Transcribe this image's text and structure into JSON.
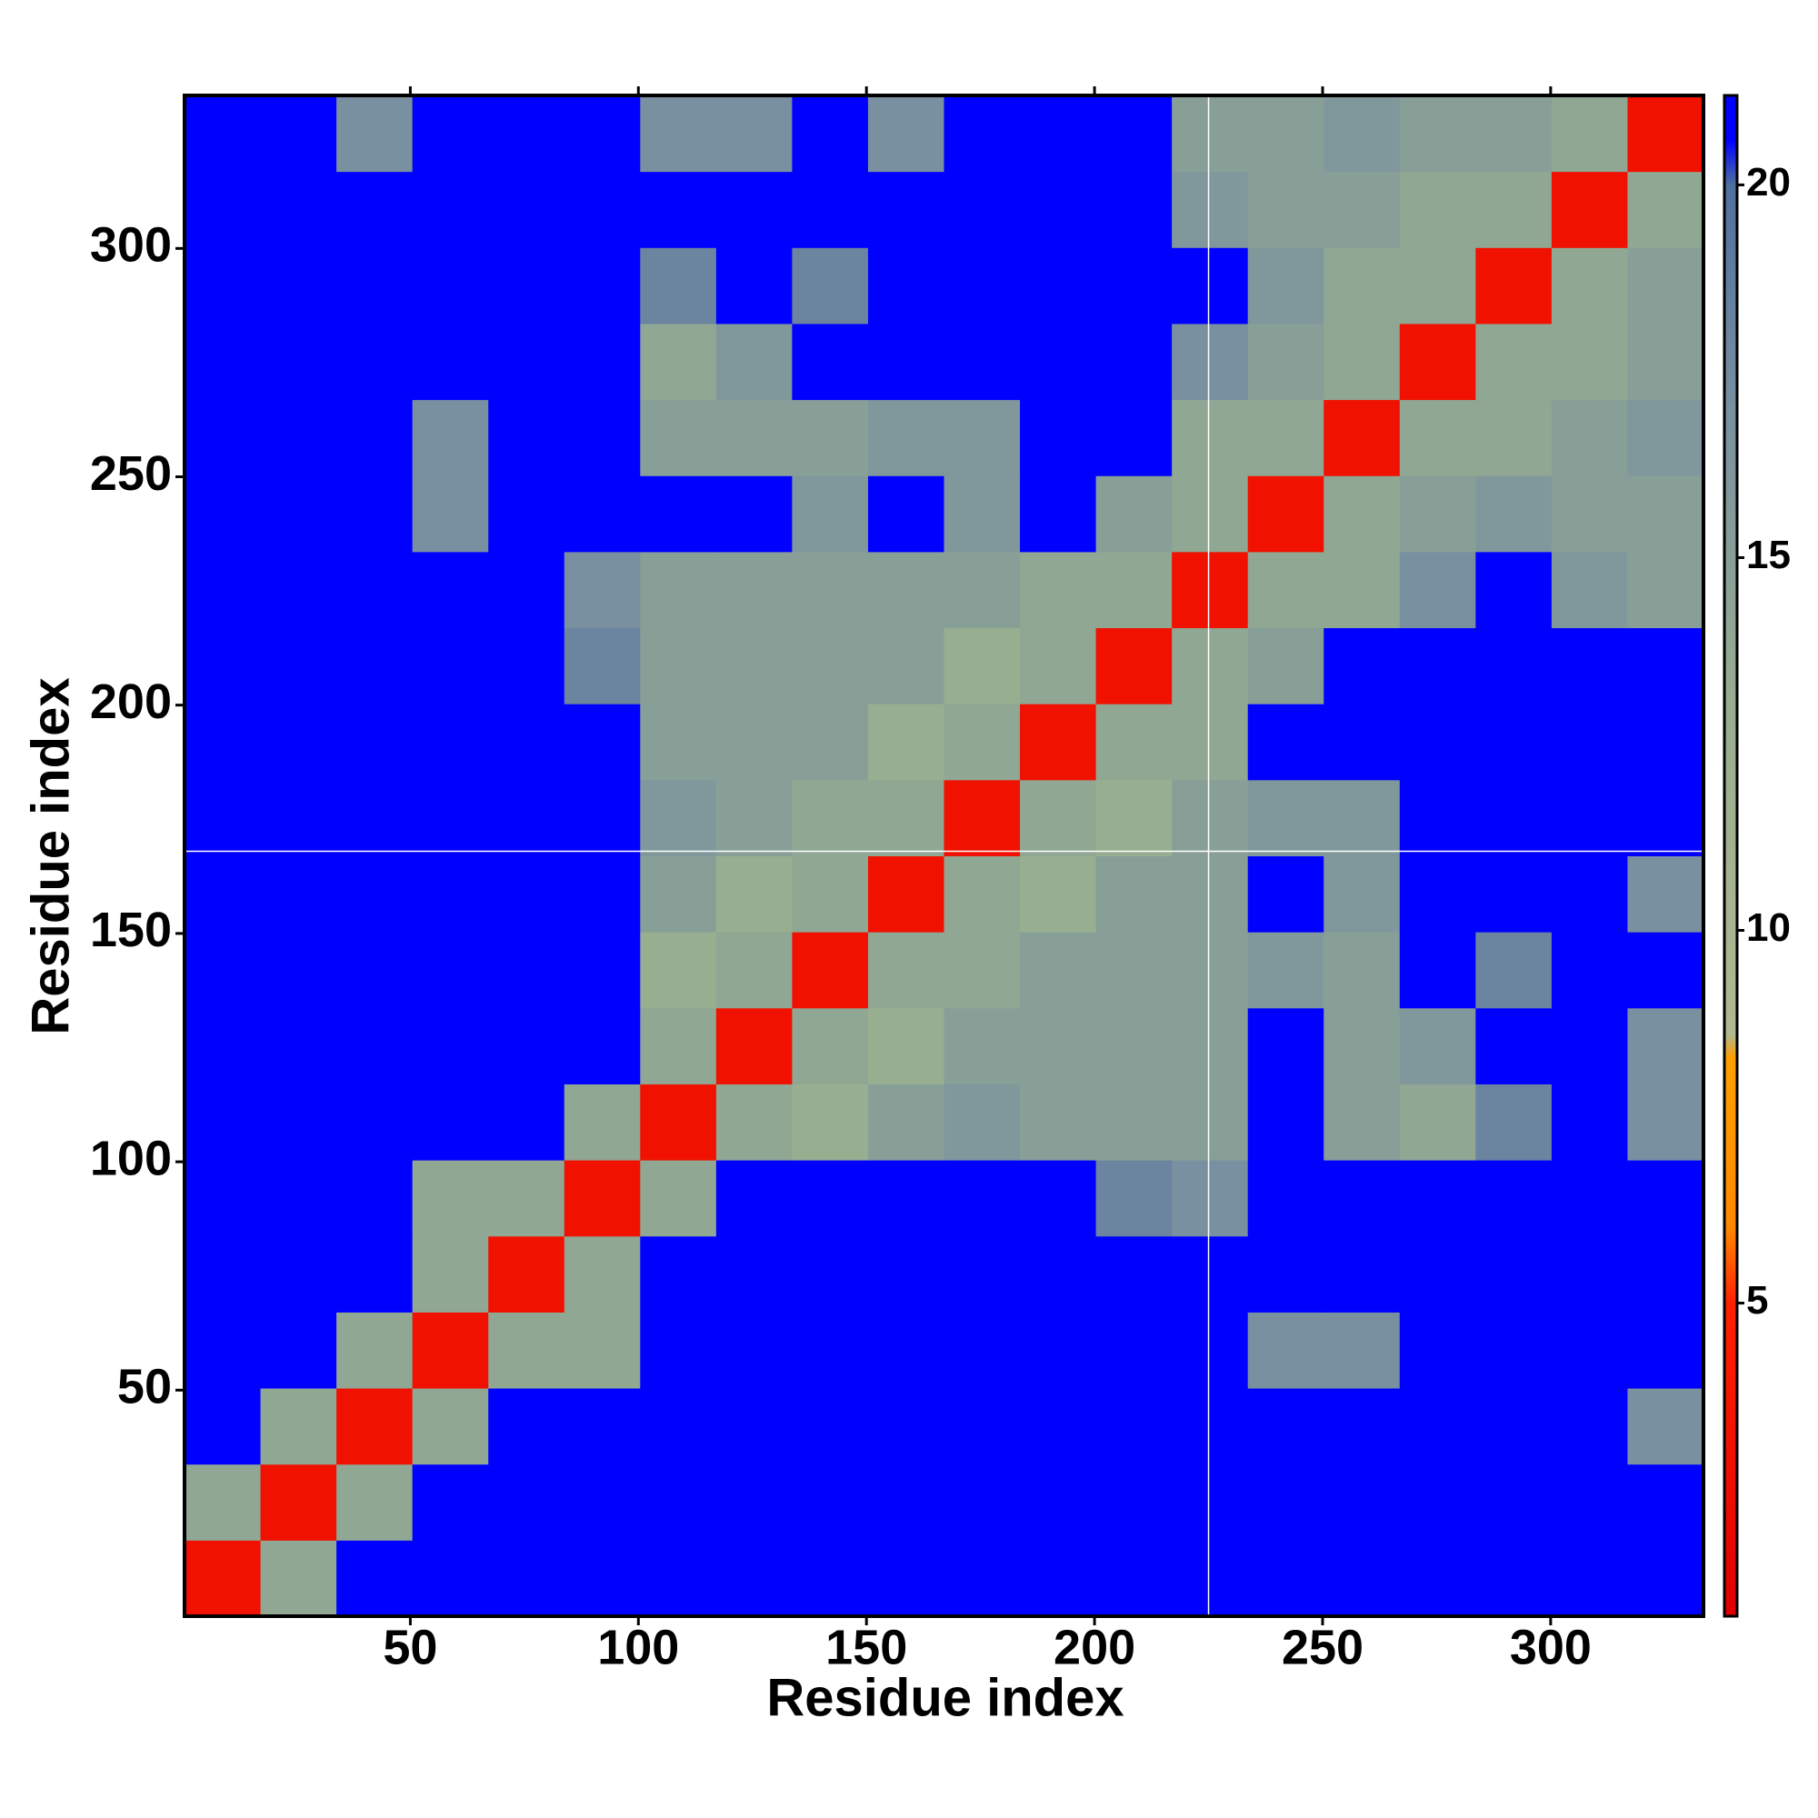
{
  "chart_data": {
    "type": "heatmap",
    "xlabel": "Residue index",
    "ylabel": "Residue index",
    "xlim": [
      0.5,
      333.5
    ],
    "ylim": [
      0.5,
      333.5
    ],
    "xticks": [
      50,
      100,
      150,
      200,
      250,
      300
    ],
    "yticks": [
      50,
      100,
      150,
      200,
      250,
      300
    ],
    "bins": [
      0.5,
      17.15,
      33.8,
      50.45,
      67.1,
      83.75,
      100.4,
      117.05,
      133.7,
      150.35,
      167,
      183.65,
      200.3,
      216.95,
      233.6,
      250.25,
      266.9,
      283.55,
      300.2,
      316.85,
      333.5
    ],
    "values": [
      [
        3,
        14,
        21,
        21,
        21,
        21,
        21,
        21,
        21,
        21,
        21,
        21,
        21,
        21,
        21,
        21,
        21,
        21,
        21,
        21
      ],
      [
        14,
        3,
        14,
        21,
        21,
        21,
        21,
        21,
        21,
        21,
        21,
        21,
        21,
        21,
        21,
        21,
        21,
        21,
        21,
        21
      ],
      [
        21,
        14,
        3,
        14,
        21,
        21,
        21,
        21,
        21,
        21,
        21,
        21,
        21,
        21,
        21,
        21,
        21,
        21,
        21,
        17
      ],
      [
        21,
        21,
        14,
        3,
        14,
        14,
        21,
        21,
        21,
        21,
        21,
        21,
        21,
        21,
        17,
        17,
        21,
        21,
        21,
        21
      ],
      [
        21,
        21,
        21,
        14,
        3,
        14,
        21,
        21,
        21,
        21,
        21,
        21,
        21,
        21,
        21,
        21,
        21,
        21,
        21,
        21
      ],
      [
        21,
        21,
        21,
        14,
        14,
        3,
        14,
        21,
        21,
        21,
        21,
        21,
        18,
        17,
        21,
        21,
        21,
        21,
        21,
        21
      ],
      [
        21,
        21,
        21,
        21,
        21,
        14,
        3,
        14,
        13,
        15,
        16,
        15,
        15,
        15,
        21,
        15,
        14,
        18,
        21,
        17
      ],
      [
        21,
        21,
        21,
        21,
        21,
        21,
        14,
        3,
        14,
        13,
        15,
        15,
        15,
        15,
        21,
        15,
        16,
        21,
        21,
        17
      ],
      [
        21,
        21,
        21,
        21,
        21,
        21,
        13,
        14,
        3,
        14,
        14,
        15,
        15,
        15,
        16,
        15,
        21,
        18,
        21,
        21
      ],
      [
        21,
        21,
        21,
        21,
        21,
        21,
        15,
        13,
        14,
        3,
        14,
        13,
        15,
        15,
        21,
        16,
        21,
        21,
        21,
        17
      ],
      [
        21,
        21,
        21,
        21,
        21,
        21,
        16,
        15,
        14,
        14,
        3,
        14,
        13,
        15,
        16,
        16,
        21,
        21,
        21,
        21
      ],
      [
        21,
        21,
        21,
        21,
        21,
        21,
        15,
        15,
        15,
        13,
        14,
        3,
        14,
        14,
        21,
        21,
        21,
        21,
        21,
        21
      ],
      [
        21,
        21,
        21,
        21,
        21,
        18,
        15,
        15,
        15,
        15,
        13,
        14,
        3,
        14,
        15,
        21,
        21,
        21,
        21,
        21
      ],
      [
        21,
        21,
        21,
        21,
        21,
        17,
        15,
        15,
        15,
        15,
        15,
        14,
        14,
        3,
        14,
        14,
        17,
        21,
        16,
        15
      ],
      [
        21,
        21,
        21,
        17,
        21,
        21,
        21,
        21,
        16,
        21,
        16,
        21,
        15,
        14,
        3,
        14,
        15,
        16,
        15,
        15
      ],
      [
        21,
        21,
        21,
        17,
        21,
        21,
        15,
        15,
        15,
        16,
        16,
        21,
        21,
        14,
        14,
        3,
        14,
        14,
        15,
        16
      ],
      [
        21,
        21,
        21,
        21,
        21,
        21,
        14,
        16,
        21,
        21,
        21,
        21,
        21,
        17,
        15,
        14,
        3,
        14,
        14,
        15
      ],
      [
        21,
        21,
        21,
        21,
        21,
        21,
        18,
        21,
        18,
        21,
        21,
        21,
        21,
        21,
        16,
        14,
        14,
        3,
        14,
        15
      ],
      [
        21,
        21,
        21,
        21,
        21,
        21,
        21,
        21,
        21,
        21,
        21,
        21,
        21,
        16,
        15,
        15,
        14,
        14,
        3,
        14
      ],
      [
        21,
        21,
        17,
        21,
        21,
        21,
        17,
        17,
        21,
        17,
        21,
        21,
        21,
        15,
        15,
        16,
        15,
        15,
        14,
        3
      ]
    ],
    "clim": [
      0.8,
      21.2
    ],
    "cticks": [
      5,
      10,
      15,
      20
    ],
    "colorscale": [
      {
        "value": 0.8,
        "color": "#e00000"
      },
      {
        "value": 5,
        "color": "#ff2000"
      },
      {
        "value": 6,
        "color": "#ff8800"
      },
      {
        "value": 8.3,
        "color": "#ffa000"
      },
      {
        "value": 8.6,
        "color": "#b0b890"
      },
      {
        "value": 13,
        "color": "#98ae90"
      },
      {
        "value": 17,
        "color": "#7890a0"
      },
      {
        "value": 20,
        "color": "#50709f"
      },
      {
        "value": 20.6,
        "color": "#0000ff"
      },
      {
        "value": 21.2,
        "color": "#0000ff"
      }
    ],
    "crosshair": [
      225,
      168
    ]
  }
}
